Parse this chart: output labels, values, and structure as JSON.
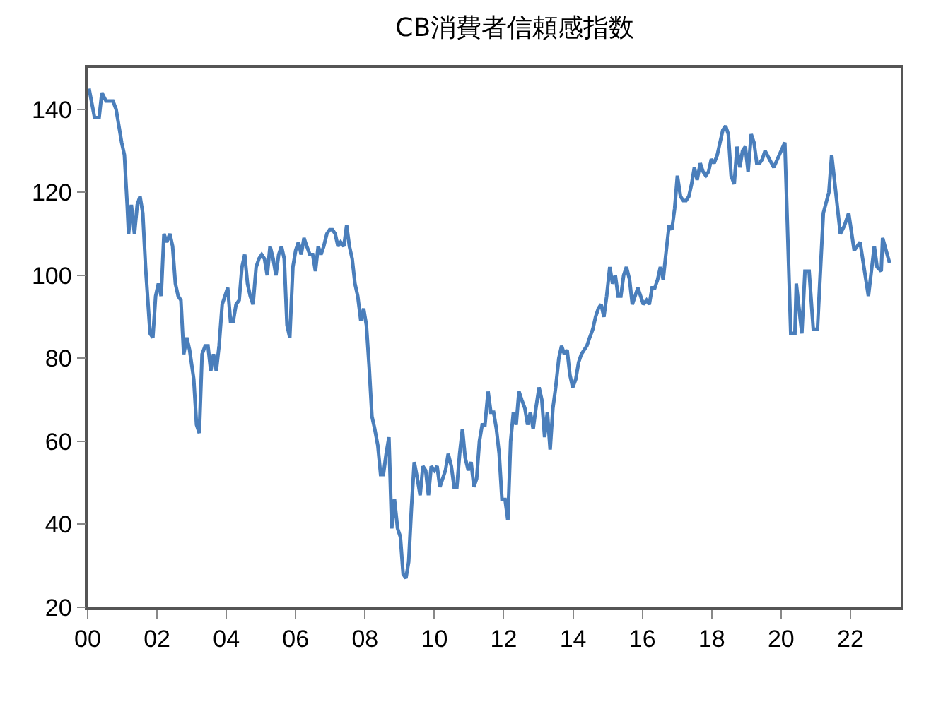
{
  "chart_data": {
    "type": "line",
    "title": "CB消費者信頼感指数",
    "xlim": [
      2000,
      2023.45
    ],
    "xticks": [
      {
        "value": 2000,
        "label": "00"
      },
      {
        "value": 2002,
        "label": "02"
      },
      {
        "value": 2004,
        "label": "04"
      },
      {
        "value": 2006,
        "label": "06"
      },
      {
        "value": 2008,
        "label": "08"
      },
      {
        "value": 2010,
        "label": "10"
      },
      {
        "value": 2012,
        "label": "12"
      },
      {
        "value": 2014,
        "label": "14"
      },
      {
        "value": 2016,
        "label": "16"
      },
      {
        "value": 2018,
        "label": "18"
      },
      {
        "value": 2020,
        "label": "20"
      },
      {
        "value": 2022,
        "label": "22"
      }
    ],
    "ylim": [
      20,
      150
    ],
    "yticks": [
      20,
      40,
      60,
      80,
      100,
      120,
      140
    ],
    "grid": false,
    "marker": "none",
    "line_style": "solid",
    "series": [
      {
        "color": "#4a7ebb",
        "x": [
          2000.04,
          2000.2,
          2000.33,
          2000.41,
          2000.53,
          2000.61,
          2000.73,
          2000.82,
          2000.98,
          2001.06,
          2001.14,
          2001.18,
          2001.26,
          2001.35,
          2001.43,
          2001.51,
          2001.59,
          2001.67,
          2001.8,
          2001.88,
          2001.96,
          2002.04,
          2002.12,
          2002.2,
          2002.28,
          2002.37,
          2002.45,
          2002.53,
          2002.61,
          2002.69,
          2002.77,
          2002.86,
          2002.94,
          2003.06,
          2003.14,
          2003.22,
          2003.3,
          2003.39,
          2003.47,
          2003.55,
          2003.63,
          2003.71,
          2003.79,
          2003.88,
          2003.96,
          2004.04,
          2004.12,
          2004.2,
          2004.28,
          2004.37,
          2004.45,
          2004.53,
          2004.61,
          2004.69,
          2004.77,
          2004.86,
          2004.94,
          2005.02,
          2005.1,
          2005.18,
          2005.26,
          2005.35,
          2005.43,
          2005.51,
          2005.59,
          2005.67,
          2005.75,
          2005.83,
          2005.92,
          2006.0,
          2006.08,
          2006.16,
          2006.24,
          2006.32,
          2006.41,
          2006.49,
          2006.57,
          2006.65,
          2006.73,
          2006.81,
          2006.9,
          2006.98,
          2007.06,
          2007.14,
          2007.22,
          2007.3,
          2007.39,
          2007.47,
          2007.55,
          2007.63,
          2007.71,
          2007.79,
          2007.88,
          2007.96,
          2008.04,
          2008.12,
          2008.2,
          2008.28,
          2008.37,
          2008.45,
          2008.53,
          2008.61,
          2008.69,
          2008.77,
          2008.85,
          2008.94,
          2009.02,
          2009.1,
          2009.18,
          2009.26,
          2009.34,
          2009.42,
          2009.51,
          2009.59,
          2009.67,
          2009.75,
          2009.83,
          2009.91,
          2010.0,
          2010.08,
          2010.16,
          2010.24,
          2010.32,
          2010.4,
          2010.49,
          2010.57,
          2010.65,
          2010.73,
          2010.81,
          2010.89,
          2010.98,
          2011.06,
          2011.14,
          2011.22,
          2011.3,
          2011.38,
          2011.46,
          2011.55,
          2011.63,
          2011.71,
          2011.79,
          2011.87,
          2011.95,
          2012.04,
          2012.12,
          2012.2,
          2012.28,
          2012.36,
          2012.44,
          2012.52,
          2012.61,
          2012.69,
          2012.77,
          2012.85,
          2012.93,
          2013.02,
          2013.1,
          2013.18,
          2013.26,
          2013.34,
          2013.42,
          2013.5,
          2013.59,
          2013.67,
          2013.75,
          2013.83,
          2013.91,
          2013.99,
          2014.08,
          2014.16,
          2014.24,
          2014.32,
          2014.4,
          2014.48,
          2014.57,
          2014.65,
          2014.73,
          2014.81,
          2014.89,
          2014.97,
          2015.06,
          2015.14,
          2015.22,
          2015.3,
          2015.38,
          2015.46,
          2015.54,
          2015.63,
          2015.71,
          2015.79,
          2015.87,
          2015.95,
          2016.03,
          2016.12,
          2016.2,
          2016.28,
          2016.36,
          2016.44,
          2016.52,
          2016.6,
          2016.69,
          2016.77,
          2016.85,
          2016.93,
          2017.01,
          2017.1,
          2017.18,
          2017.26,
          2017.34,
          2017.42,
          2017.5,
          2017.58,
          2017.67,
          2017.75,
          2017.83,
          2017.91,
          2017.99,
          2018.07,
          2018.16,
          2018.24,
          2018.32,
          2018.4,
          2018.48,
          2018.56,
          2018.65,
          2018.73,
          2018.81,
          2018.89,
          2018.97,
          2019.05,
          2019.14,
          2019.22,
          2019.3,
          2019.38,
          2019.46,
          2019.54,
          2019.79,
          2020.11,
          2020.28,
          2020.4,
          2020.44,
          2020.6,
          2020.69,
          2020.81,
          2020.93,
          2021.05,
          2021.22,
          2021.38,
          2021.46,
          2021.54,
          2021.71,
          2021.83,
          2021.95,
          2022.11,
          2022.28,
          2022.52,
          2022.69,
          2022.77,
          2022.89,
          2022.93,
          2023.13
        ],
        "values": [
          145,
          138,
          138,
          144,
          142,
          142,
          142,
          140,
          132,
          129,
          117,
          110,
          117,
          110,
          117,
          119,
          115,
          102,
          86,
          85,
          95,
          98,
          95,
          110,
          108,
          110,
          107,
          98,
          95,
          94,
          81,
          85,
          82,
          75,
          64,
          62,
          81,
          83,
          83,
          77,
          81,
          77,
          83,
          93,
          95,
          97,
          89,
          89,
          93,
          94,
          102,
          105,
          98,
          95,
          93,
          102,
          104,
          105,
          104,
          100,
          107,
          104,
          100,
          105,
          107,
          104,
          88,
          85,
          102,
          106,
          108,
          105,
          109,
          107,
          105,
          105,
          101,
          107,
          105,
          107,
          110,
          111,
          111,
          110,
          107,
          108,
          107,
          112,
          107,
          104,
          98,
          95,
          89,
          92,
          88,
          78,
          66,
          63,
          59,
          52,
          52,
          57,
          61,
          39,
          46,
          39,
          37,
          28,
          27,
          31,
          44,
          55,
          51,
          47,
          54,
          53,
          47,
          54,
          53,
          54,
          49,
          51,
          53,
          57,
          54,
          49,
          49,
          57,
          63,
          56,
          53,
          55,
          49,
          51,
          60,
          64,
          64,
          72,
          67,
          67,
          63,
          57,
          46,
          46,
          41,
          60,
          67,
          64,
          72,
          70,
          68,
          64,
          67,
          63,
          68,
          73,
          70,
          61,
          67,
          58,
          68,
          73,
          80,
          83,
          81,
          82,
          76,
          73,
          75,
          79,
          81,
          82,
          83,
          85,
          87,
          90,
          92,
          93,
          90,
          95,
          102,
          98,
          100,
          95,
          95,
          100,
          102,
          99,
          93,
          95,
          97,
          95,
          93,
          94,
          93,
          97,
          97,
          99,
          102,
          99,
          106,
          112,
          111,
          116,
          124,
          119,
          118,
          118,
          119,
          122,
          126,
          123,
          127,
          125,
          124,
          125,
          128,
          127,
          129,
          132,
          135,
          136,
          134,
          124,
          122,
          131,
          126,
          130,
          131,
          125,
          134,
          132,
          127,
          127,
          128,
          130,
          126,
          132,
          86,
          86,
          98,
          86,
          101,
          101,
          87,
          87,
          115,
          120,
          129,
          123,
          110,
          112,
          115,
          106,
          108,
          95,
          107,
          102,
          101,
          109,
          103
        ]
      }
    ]
  }
}
